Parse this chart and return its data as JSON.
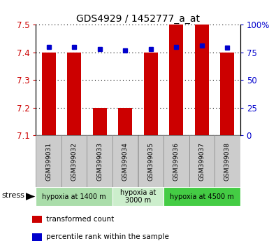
{
  "title": "GDS4929 / 1452777_a_at",
  "samples": [
    "GSM399031",
    "GSM399032",
    "GSM399033",
    "GSM399034",
    "GSM399035",
    "GSM399036",
    "GSM399037",
    "GSM399038"
  ],
  "bar_values": [
    7.4,
    7.4,
    7.2,
    7.2,
    7.4,
    7.5,
    7.5,
    7.4
  ],
  "bar_bottom": 7.1,
  "percentile_values": [
    80,
    80,
    78,
    77,
    78,
    80,
    81,
    79
  ],
  "ylim": [
    7.1,
    7.5
  ],
  "y2lim": [
    0,
    100
  ],
  "yticks": [
    7.1,
    7.2,
    7.3,
    7.4,
    7.5
  ],
  "y2ticks": [
    0,
    25,
    50,
    75,
    100
  ],
  "y2ticklabels": [
    "0",
    "25",
    "50",
    "75",
    "100%"
  ],
  "bar_color": "#cc0000",
  "dot_color": "#0000cc",
  "groups": [
    {
      "label": "hypoxia at 1400 m",
      "start": 0,
      "end": 3,
      "color": "#aaddaa"
    },
    {
      "label": "hypoxia at\n3000 m",
      "start": 3,
      "end": 5,
      "color": "#cceecc"
    },
    {
      "label": "hypoxia at 4500 m",
      "start": 5,
      "end": 8,
      "color": "#44cc44"
    }
  ],
  "stress_label": "stress",
  "legend_items": [
    {
      "label": "transformed count",
      "color": "#cc0000"
    },
    {
      "label": "percentile rank within the sample",
      "color": "#0000cc"
    }
  ],
  "tick_color_left": "#cc0000",
  "tick_color_right": "#0000cc",
  "sample_box_color": "#cccccc",
  "sample_box_edge": "#888888"
}
